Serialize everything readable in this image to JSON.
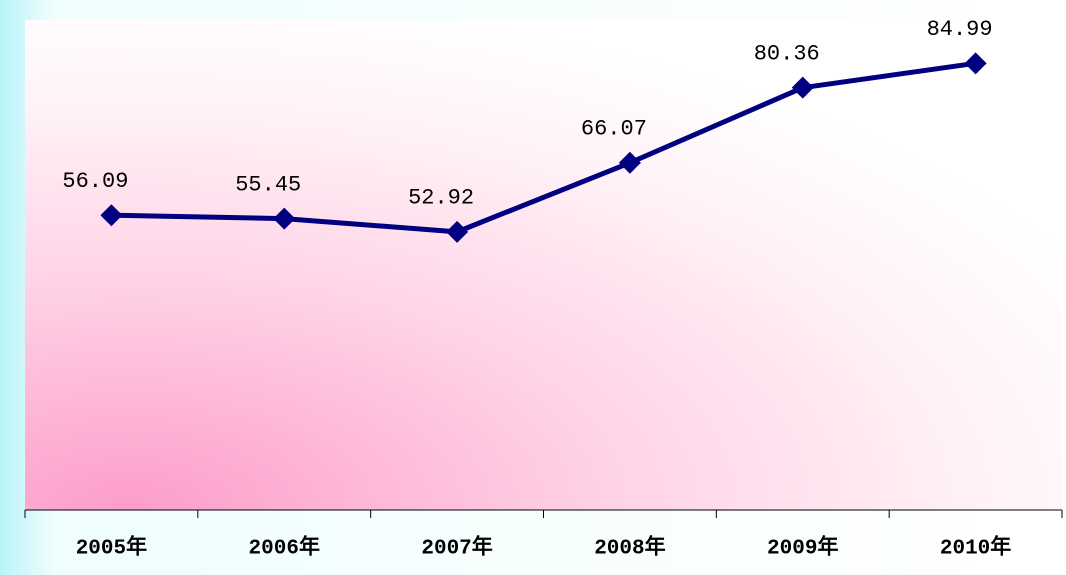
{
  "chart_data": {
    "type": "line",
    "categories": [
      "2005年",
      "2006年",
      "2007年",
      "2008年",
      "2009年",
      "2010年"
    ],
    "series": [
      {
        "color": "#000080",
        "values": [
          56.09,
          55.45,
          52.92,
          66.07,
          80.36,
          84.99
        ]
      }
    ],
    "ylim": [
      0,
      90
    ]
  }
}
